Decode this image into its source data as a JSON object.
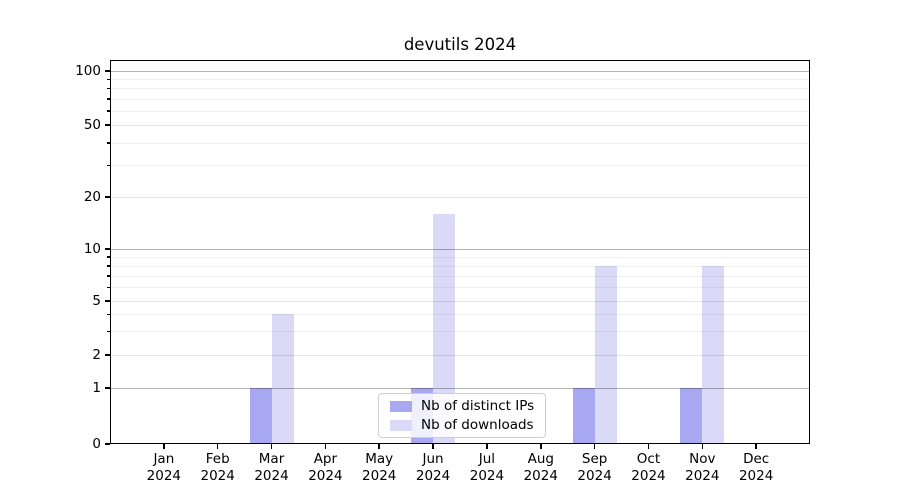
{
  "chart_data": {
    "type": "bar",
    "title": "devutils 2024",
    "categories": [
      "Jan",
      "Feb",
      "Mar",
      "Apr",
      "May",
      "Jun",
      "Jul",
      "Aug",
      "Sep",
      "Oct",
      "Nov",
      "Dec"
    ],
    "x_tick_year": "2024",
    "series": [
      {
        "name": "Nb of distinct IPs",
        "color": "#a8a8f0",
        "values": [
          0,
          0,
          1,
          0,
          0,
          1,
          0,
          0,
          1,
          0,
          1,
          0
        ]
      },
      {
        "name": "Nb of downloads",
        "color": "#dadaf8",
        "values": [
          0,
          0,
          4,
          0,
          0,
          16,
          0,
          0,
          8,
          0,
          8,
          0
        ]
      }
    ],
    "y_ticks": [
      0,
      1,
      2,
      5,
      10,
      20,
      50,
      100
    ],
    "y_minor_ticks": [
      3,
      4,
      6,
      7,
      8,
      9,
      30,
      40,
      60,
      70,
      80,
      90
    ],
    "y_decade_lines": [
      1,
      10,
      100
    ],
    "y_scale": "symlog",
    "ylim": [
      0,
      115
    ],
    "xlabel": "",
    "ylabel": "",
    "grid": true,
    "legend_position": "lower center"
  }
}
